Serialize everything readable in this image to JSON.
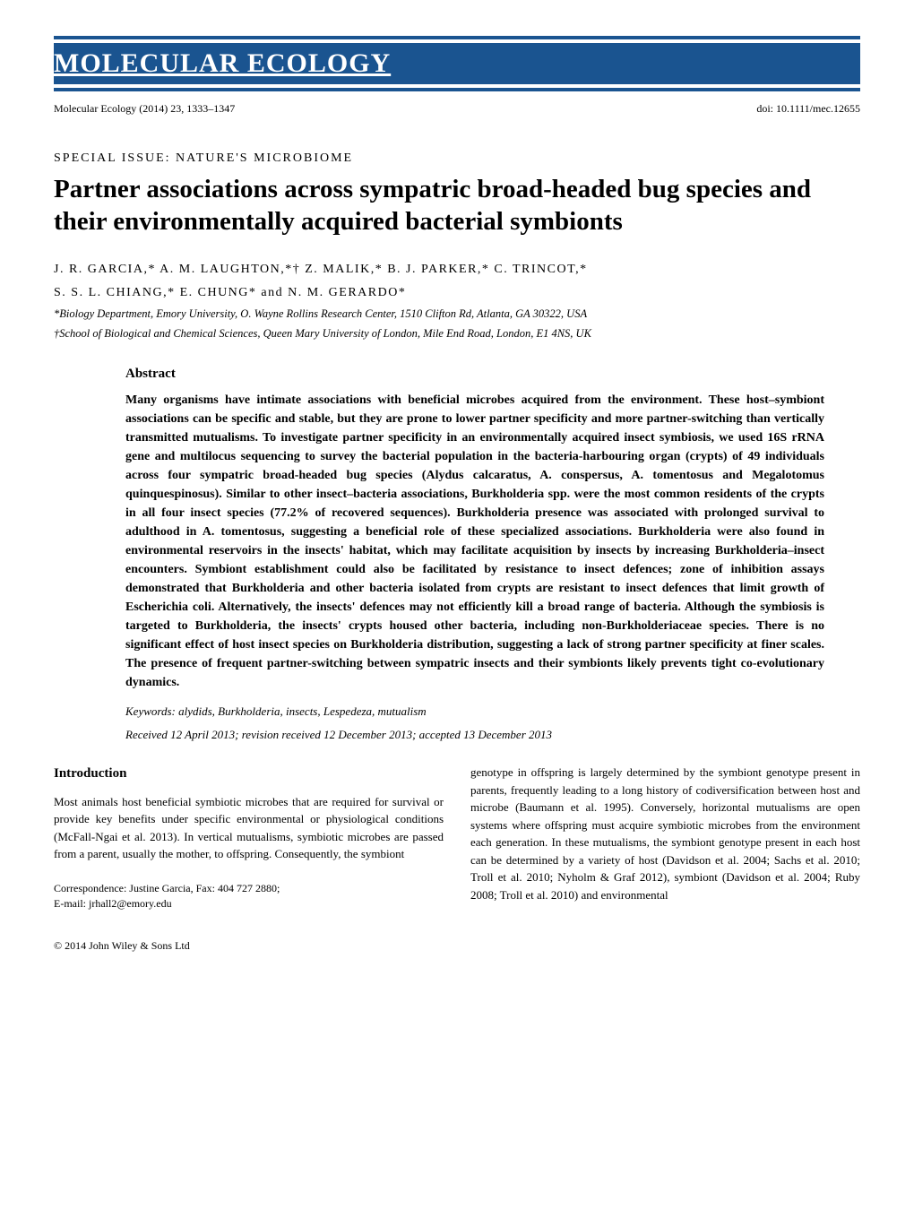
{
  "journal": {
    "name": "MOLECULAR ECOLOGY",
    "banner_color": "#1a5490",
    "banner_text_color": "#ffffff"
  },
  "meta": {
    "citation": "Molecular Ecology (2014) 23, 1333–1347",
    "doi": "doi: 10.1111/mec.12655"
  },
  "special_issue": "SPECIAL ISSUE: NATURE'S MICROBIOME",
  "title": "Partner associations across sympatric broad-headed bug species and their environmentally acquired bacterial symbionts",
  "authors_line1": "J. R. GARCIA,* A. M. LAUGHTON,*† Z. MALIK,* B. J. PARKER,* C. TRINCOT,*",
  "authors_line2": "S. S. L. CHIANG,* E. CHUNG* and N. M. GERARDO*",
  "affiliation1": "*Biology Department, Emory University, O. Wayne Rollins Research Center, 1510 Clifton Rd, Atlanta, GA 30322, USA",
  "affiliation2": "†School of Biological and Chemical Sciences, Queen Mary University of London, Mile End Road, London, E1 4NS, UK",
  "abstract": {
    "heading": "Abstract",
    "text": "Many organisms have intimate associations with beneficial microbes acquired from the environment. These host–symbiont associations can be specific and stable, but they are prone to lower partner specificity and more partner-switching than vertically transmitted mutualisms. To investigate partner specificity in an environmentally acquired insect symbiosis, we used 16S rRNA gene and multilocus sequencing to survey the bacterial population in the bacteria-harbouring organ (crypts) of 49 individuals across four sympatric broad-headed bug species (Alydus calcaratus, A. conspersus, A. tomentosus and Megalotomus quinquespinosus). Similar to other insect–bacteria associations, Burkholderia spp. were the most common residents of the crypts in all four insect species (77.2% of recovered sequences). Burkholderia presence was associated with prolonged survival to adulthood in A. tomentosus, suggesting a beneficial role of these specialized associations. Burkholderia were also found in environmental reservoirs in the insects' habitat, which may facilitate acquisition by insects by increasing Burkholderia–insect encounters. Symbiont establishment could also be facilitated by resistance to insect defences; zone of inhibition assays demonstrated that Burkholderia and other bacteria isolated from crypts are resistant to insect defences that limit growth of Escherichia coli. Alternatively, the insects' defences may not efficiently kill a broad range of bacteria. Although the symbiosis is targeted to Burkholderia, the insects' crypts housed other bacteria, including non-Burkholderiaceae species. There is no significant effect of host insect species on Burkholderia distribution, suggesting a lack of strong partner specificity at finer scales. The presence of frequent partner-switching between sympatric insects and their symbionts likely prevents tight co-evolutionary dynamics."
  },
  "keywords": {
    "label": "Keywords",
    "text": ": alydids, Burkholderia, insects, Lespedeza, mutualism"
  },
  "dates": "Received 12 April 2013; revision received 12 December 2013; accepted 13 December 2013",
  "introduction": {
    "heading": "Introduction",
    "col1_text": "Most animals host beneficial symbiotic microbes that are required for survival or provide key benefits under specific environmental or physiological conditions (McFall-Ngai et al. 2013). In vertical mutualisms, symbiotic microbes are passed from a parent, usually the mother, to offspring. Consequently, the symbiont",
    "col2_text": "genotype in offspring is largely determined by the symbiont genotype present in parents, frequently leading to a long history of codiversification between host and microbe (Baumann et al. 1995). Conversely, horizontal mutualisms are open systems where offspring must acquire symbiotic microbes from the environment each generation. In these mutualisms, the symbiont genotype present in each host can be determined by a variety of host (Davidson et al. 2004; Sachs et al. 2010; Troll et al. 2010; Nyholm & Graf 2012), symbiont (Davidson et al. 2004; Ruby 2008; Troll et al. 2010) and environmental"
  },
  "correspondence": {
    "line1": "Correspondence: Justine Garcia, Fax: 404 727 2880;",
    "line2": "E-mail: jrhall2@emory.edu"
  },
  "copyright": "© 2014 John Wiley & Sons Ltd"
}
